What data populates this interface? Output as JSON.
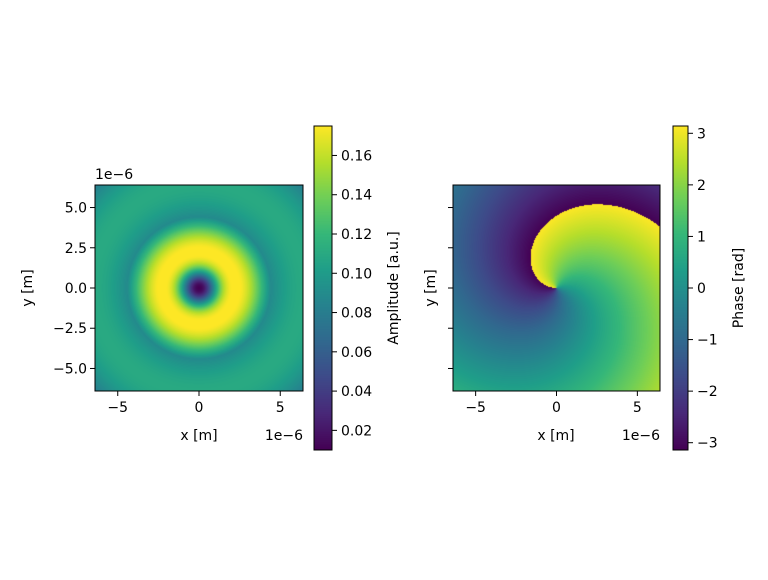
{
  "chart_data": [
    {
      "type": "heatmap",
      "title": "",
      "xlabel": "x [m]",
      "ylabel": "y [m]",
      "x_offset_label": "1e−6",
      "y_offset_label": "1e−6",
      "xlim": [
        -6.4,
        6.4
      ],
      "ylim": [
        -6.4,
        6.4
      ],
      "xticks": [
        -5,
        0,
        5
      ],
      "xtick_labels": [
        "−5",
        "0",
        "5"
      ],
      "yticks": [
        -5.0,
        -2.5,
        0.0,
        2.5,
        5.0
      ],
      "ytick_labels": [
        "−5.0",
        "−2.5",
        "0.0",
        "2.5",
        "5.0"
      ],
      "colormap": "viridis",
      "field": "amplitude",
      "ring_radius": 2.2,
      "ring_width": 1.8,
      "colorbar": {
        "label": "Amplitude [a.u.]",
        "range": [
          0.01,
          0.175
        ],
        "ticks": [
          0.02,
          0.04,
          0.06,
          0.08,
          0.1,
          0.12,
          0.14,
          0.16
        ],
        "tick_labels": [
          "0.02",
          "0.04",
          "0.06",
          "0.08",
          "0.10",
          "0.12",
          "0.14",
          "0.16"
        ]
      }
    },
    {
      "type": "heatmap",
      "title": "",
      "xlabel": "x [m]",
      "ylabel": "y [m]",
      "x_offset_label": "1e−6",
      "xlim": [
        -6.4,
        6.4
      ],
      "ylim": [
        -6.4,
        6.4
      ],
      "xticks": [
        -5,
        0,
        5
      ],
      "xtick_labels": [
        "−5",
        "0",
        "5"
      ],
      "yticks": [
        -5.0,
        -2.5,
        0.0,
        2.5,
        5.0
      ],
      "ytick_labels": [],
      "colormap": "viridis",
      "field": "phase",
      "colorbar": {
        "label": "Phase [rad]",
        "range": [
          -3.14159,
          3.14159
        ],
        "ticks": [
          -3,
          -2,
          -1,
          0,
          1,
          2,
          3
        ],
        "tick_labels": [
          "−3",
          "−2",
          "−1",
          "0",
          "1",
          "2",
          "3"
        ]
      }
    }
  ]
}
